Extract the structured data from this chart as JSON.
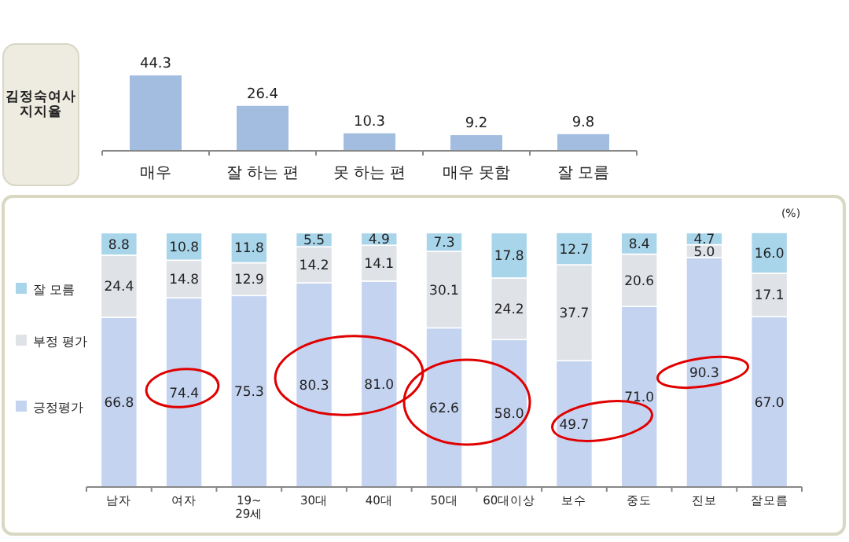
{
  "chart_data": [
    {
      "type": "bar",
      "title": "김정숙여사\n지지율",
      "categories": [
        "매우",
        "잘 하는 편",
        "못 하는 편",
        "매우 못함",
        "잘 모름"
      ],
      "values": [
        44.3,
        26.4,
        10.3,
        9.2,
        9.8
      ],
      "color": "#a3bde0",
      "data_labels": true
    },
    {
      "type": "bar",
      "stacked": true,
      "categories": [
        "남자",
        "여자",
        "19~\n29세",
        "30대",
        "40대",
        "50대",
        "60대이상",
        "보수",
        "중도",
        "진보",
        "잘모름"
      ],
      "series": [
        {
          "name": "긍정평가",
          "color": "#c4d3f0",
          "values": [
            66.8,
            74.4,
            75.3,
            80.3,
            81.0,
            62.6,
            58.0,
            49.7,
            71.0,
            90.3,
            67.0
          ],
          "value_labels": [
            "66.8",
            "74.4",
            "75.3",
            "80.3",
            "81.0",
            "62.6",
            "58.0",
            "49.7",
            "71.0",
            "90.3",
            "67.0"
          ]
        },
        {
          "name": "부정 평가",
          "color": "#dfe2e7",
          "values": [
            24.4,
            14.8,
            12.9,
            14.2,
            14.1,
            30.1,
            24.2,
            37.7,
            20.6,
            5.0,
            17.1
          ],
          "value_labels": [
            "24.4",
            "14.8",
            "12.9",
            "14.2",
            "14.1",
            "30.1",
            "24.2",
            "37.7",
            "20.6",
            "5.0",
            "17.1"
          ]
        },
        {
          "name": "잘 모름",
          "color": "#a9d5ea",
          "values": [
            8.8,
            10.8,
            11.8,
            5.5,
            4.9,
            7.3,
            17.8,
            12.7,
            8.4,
            4.7,
            16.0
          ],
          "value_labels": [
            "8.8",
            "10.8",
            "11.8",
            "5.5",
            "4.9",
            "7.3",
            "17.8",
            "12.7",
            "8.4",
            "4.7",
            "16.0"
          ]
        }
      ],
      "legend": "left",
      "annotations": [
        "(%)"
      ]
    }
  ]
}
